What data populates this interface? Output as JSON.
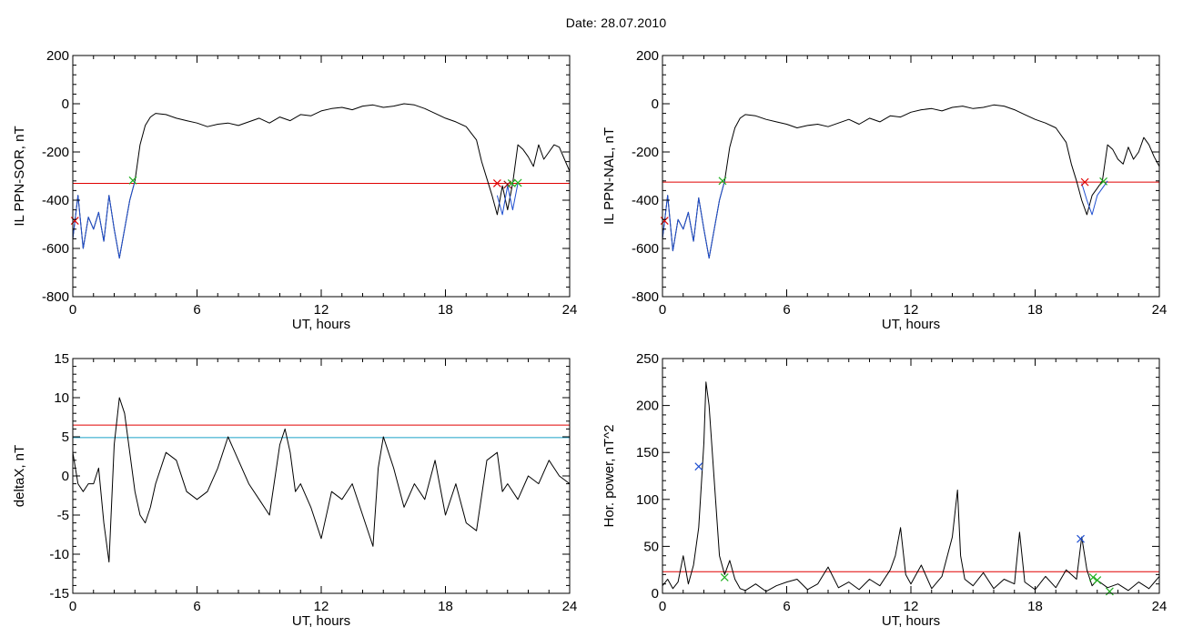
{
  "title": "Date:  28.07.2010",
  "chart_data": [
    {
      "type": "line",
      "ylabel": "IL PPN-SOR, nT",
      "xlabel": "UT, hours",
      "xlim": [
        0,
        24
      ],
      "ylim": [
        -800,
        200
      ],
      "xticks": [
        0,
        6,
        12,
        18,
        24
      ],
      "yticks": [
        -800,
        -600,
        -400,
        -200,
        0,
        200
      ],
      "threshold": {
        "value": -330,
        "color": "#e00000"
      },
      "series": [
        {
          "color": "#000000",
          "x": [
            0,
            0.25,
            0.5,
            0.75,
            1,
            1.25,
            1.5,
            1.75,
            2,
            2.25,
            2.5,
            2.75,
            3,
            3.25,
            3.5,
            3.75,
            4,
            4.5,
            5,
            5.5,
            6,
            6.5,
            7,
            7.5,
            8,
            8.5,
            9,
            9.5,
            10,
            10.5,
            11,
            11.5,
            12,
            12.5,
            13,
            13.5,
            14,
            14.5,
            15,
            15.5,
            16,
            16.5,
            17,
            17.5,
            18,
            18.5,
            19,
            19.5,
            19.75,
            20,
            20.25,
            20.5,
            20.75,
            21,
            21.25,
            21.5,
            21.75,
            22,
            22.25,
            22.5,
            22.75,
            23,
            23.25,
            23.5,
            23.75,
            24
          ],
          "y": [
            -560,
            -380,
            -600,
            -470,
            -520,
            -450,
            -570,
            -380,
            -520,
            -640,
            -520,
            -400,
            -320,
            -170,
            -90,
            -55,
            -40,
            -45,
            -60,
            -70,
            -80,
            -95,
            -85,
            -80,
            -90,
            -75,
            -60,
            -80,
            -55,
            -70,
            -45,
            -50,
            -30,
            -20,
            -15,
            -25,
            -10,
            -5,
            -15,
            -10,
            0,
            -5,
            -20,
            -40,
            -60,
            -75,
            -95,
            -150,
            -240,
            -310,
            -380,
            -460,
            -340,
            -440,
            -330,
            -170,
            -190,
            -220,
            -260,
            -170,
            -230,
            -200,
            -170,
            -180,
            -230,
            -280
          ]
        },
        {
          "color": "#1f4fd0",
          "x": [
            0,
            0.25,
            0.5,
            0.75,
            1,
            1.25,
            1.5,
            1.75,
            2,
            2.25,
            2.5,
            2.75,
            3
          ],
          "y": [
            -560,
            -380,
            -600,
            -470,
            -520,
            -450,
            -570,
            -380,
            -520,
            -640,
            -520,
            -400,
            -320
          ]
        },
        {
          "color": "#1f4fd0",
          "x": [
            20.5,
            20.75,
            21,
            21.25,
            21.5
          ],
          "y": [
            -380,
            -460,
            -340,
            -440,
            -330
          ]
        }
      ],
      "markers": [
        {
          "x": 0.1,
          "y": -485,
          "color": "#e00000"
        },
        {
          "x": 2.9,
          "y": -318,
          "color": "#20b020"
        },
        {
          "x": 20.5,
          "y": -330,
          "color": "#e00000"
        },
        {
          "x": 21.0,
          "y": -335,
          "color": "#8b1a1a"
        },
        {
          "x": 21.2,
          "y": -330,
          "color": "#20b020"
        },
        {
          "x": 21.5,
          "y": -328,
          "color": "#20b020"
        }
      ]
    },
    {
      "type": "line",
      "ylabel": "IL PPN-NAL, nT",
      "xlabel": "UT, hours",
      "xlim": [
        0,
        24
      ],
      "ylim": [
        -800,
        200
      ],
      "xticks": [
        0,
        6,
        12,
        18,
        24
      ],
      "yticks": [
        -800,
        -600,
        -400,
        -200,
        0,
        200
      ],
      "threshold": {
        "value": -325,
        "color": "#e00000"
      },
      "series": [
        {
          "color": "#000000",
          "x": [
            0,
            0.25,
            0.5,
            0.75,
            1,
            1.25,
            1.5,
            1.75,
            2,
            2.25,
            2.5,
            2.75,
            3,
            3.25,
            3.5,
            3.75,
            4,
            4.5,
            5,
            5.5,
            6,
            6.5,
            7,
            7.5,
            8,
            8.5,
            9,
            9.5,
            10,
            10.5,
            11,
            11.5,
            12,
            12.5,
            13,
            13.5,
            14,
            14.5,
            15,
            15.5,
            16,
            16.5,
            17,
            17.5,
            18,
            18.5,
            19,
            19.5,
            19.75,
            20,
            20.25,
            20.5,
            20.75,
            21,
            21.25,
            21.5,
            21.75,
            22,
            22.25,
            22.5,
            22.75,
            23,
            23.25,
            23.5,
            23.75,
            24
          ],
          "y": [
            -560,
            -380,
            -610,
            -480,
            -520,
            -450,
            -570,
            -390,
            -520,
            -640,
            -520,
            -400,
            -320,
            -180,
            -100,
            -60,
            -45,
            -50,
            -65,
            -75,
            -85,
            -100,
            -90,
            -85,
            -95,
            -80,
            -65,
            -85,
            -60,
            -75,
            -50,
            -55,
            -35,
            -25,
            -20,
            -30,
            -15,
            -10,
            -20,
            -15,
            -5,
            -10,
            -25,
            -45,
            -65,
            -80,
            -100,
            -160,
            -250,
            -320,
            -400,
            -460,
            -380,
            -350,
            -320,
            -170,
            -190,
            -230,
            -250,
            -180,
            -230,
            -200,
            -140,
            -170,
            -220,
            -260
          ]
        },
        {
          "color": "#1f4fd0",
          "x": [
            0,
            0.25,
            0.5,
            0.75,
            1,
            1.25,
            1.5,
            1.75,
            2,
            2.25,
            2.5,
            2.75,
            3
          ],
          "y": [
            -560,
            -380,
            -610,
            -480,
            -520,
            -450,
            -570,
            -390,
            -520,
            -640,
            -520,
            -400,
            -320
          ]
        },
        {
          "color": "#1f4fd0",
          "x": [
            20.25,
            20.5,
            20.75,
            21,
            21.25,
            21.5
          ],
          "y": [
            -330,
            -400,
            -460,
            -380,
            -350,
            -320
          ]
        }
      ],
      "markers": [
        {
          "x": 0.1,
          "y": -485,
          "color": "#e00000"
        },
        {
          "x": 2.9,
          "y": -320,
          "color": "#20b020"
        },
        {
          "x": 20.4,
          "y": -325,
          "color": "#e00000"
        },
        {
          "x": 21.3,
          "y": -322,
          "color": "#20b020"
        }
      ]
    },
    {
      "type": "line",
      "ylabel": "deltaX, nT",
      "xlabel": "UT, hours",
      "xlim": [
        0,
        24
      ],
      "ylim": [
        -15,
        15
      ],
      "xticks": [
        0,
        6,
        12,
        18,
        24
      ],
      "yticks": [
        -15,
        -10,
        -5,
        0,
        5,
        10,
        15
      ],
      "thresholds": [
        {
          "value": 6.5,
          "color": "#e00000"
        },
        {
          "value": 4.9,
          "color": "#1aa0c8"
        }
      ],
      "series": [
        {
          "color": "#000000",
          "x": [
            0,
            0.25,
            0.5,
            0.75,
            1,
            1.25,
            1.5,
            1.75,
            2,
            2.25,
            2.5,
            2.75,
            3,
            3.25,
            3.5,
            3.75,
            4,
            4.5,
            5,
            5.5,
            6,
            6.5,
            7,
            7.5,
            8,
            8.5,
            9,
            9.5,
            10,
            10.25,
            10.5,
            10.75,
            11,
            11.5,
            12,
            12.5,
            13,
            13.5,
            14,
            14.5,
            14.75,
            15,
            15.5,
            16,
            16.5,
            17,
            17.5,
            18,
            18.5,
            19,
            19.5,
            20,
            20.5,
            20.75,
            21,
            21.5,
            22,
            22.5,
            23,
            23.5,
            24
          ],
          "y": [
            3,
            -1,
            -2,
            -1,
            -1,
            1,
            -6,
            -11,
            4,
            10,
            8,
            3,
            -2,
            -5,
            -6,
            -4,
            -1,
            3,
            2,
            -2,
            -3,
            -2,
            1,
            5,
            2,
            -1,
            -3,
            -5,
            4,
            6,
            3,
            -2,
            -1,
            -4,
            -8,
            -2,
            -3,
            -1,
            -5,
            -9,
            1,
            5,
            1,
            -4,
            -1,
            -3,
            2,
            -5,
            -1,
            -6,
            -7,
            2,
            3,
            -2,
            -1,
            -3,
            0,
            -1,
            2,
            0,
            -1
          ]
        }
      ],
      "markers": []
    },
    {
      "type": "line",
      "ylabel": "Hor. power, nT^2",
      "xlabel": "UT, hours",
      "xlim": [
        0,
        24
      ],
      "ylim": [
        0,
        250
      ],
      "xticks": [
        0,
        6,
        12,
        18,
        24
      ],
      "yticks": [
        0,
        50,
        100,
        150,
        200,
        250
      ],
      "threshold": {
        "value": 23,
        "color": "#e00000"
      },
      "series": [
        {
          "color": "#000000",
          "x": [
            0,
            0.25,
            0.5,
            0.75,
            1,
            1.25,
            1.5,
            1.75,
            2,
            2.1,
            2.25,
            2.5,
            2.75,
            3,
            3.25,
            3.5,
            3.75,
            4,
            4.5,
            5,
            5.5,
            6,
            6.5,
            7,
            7.5,
            8,
            8.5,
            9,
            9.5,
            10,
            10.5,
            11,
            11.25,
            11.5,
            11.75,
            12,
            12.5,
            13,
            13.5,
            14,
            14.25,
            14.4,
            14.6,
            15,
            15.5,
            16,
            16.5,
            17,
            17.25,
            17.5,
            18,
            18.5,
            19,
            19.5,
            20,
            20.25,
            20.5,
            20.75,
            21,
            21.5,
            22,
            22.5,
            23,
            23.5,
            24
          ],
          "y": [
            8,
            15,
            5,
            12,
            40,
            10,
            30,
            70,
            160,
            225,
            200,
            120,
            40,
            20,
            35,
            15,
            5,
            3,
            10,
            2,
            8,
            12,
            15,
            4,
            10,
            28,
            6,
            12,
            4,
            15,
            8,
            25,
            40,
            70,
            20,
            10,
            30,
            5,
            18,
            60,
            110,
            40,
            15,
            8,
            22,
            5,
            15,
            10,
            65,
            12,
            4,
            18,
            6,
            25,
            15,
            60,
            25,
            8,
            14,
            6,
            10,
            3,
            12,
            5,
            18
          ]
        }
      ],
      "markers": [
        {
          "x": 1.75,
          "y": 135,
          "color": "#1f4fd0"
        },
        {
          "x": 3.0,
          "y": 17,
          "color": "#20b020"
        },
        {
          "x": 20.2,
          "y": 58,
          "color": "#1f4fd0"
        },
        {
          "x": 20.8,
          "y": 17,
          "color": "#20b020"
        },
        {
          "x": 21.0,
          "y": 14,
          "color": "#20b020"
        },
        {
          "x": 21.6,
          "y": 2,
          "color": "#20b020"
        }
      ]
    }
  ]
}
